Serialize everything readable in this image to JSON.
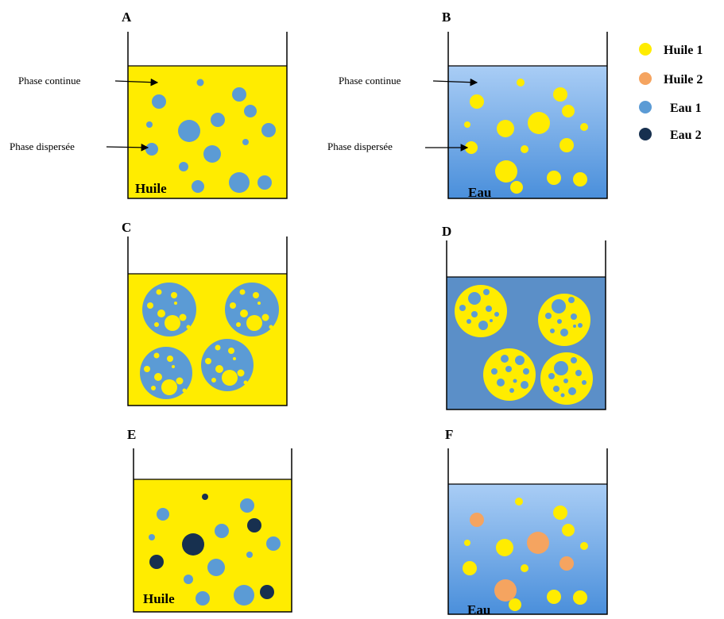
{
  "panels": {
    "a": {
      "letter": "A",
      "phase_label": "Huile",
      "continuous_label": "Phase continue",
      "dispersed_label": "Phase dispersée"
    },
    "b": {
      "letter": "B",
      "phase_label": "Eau",
      "continuous_label": "Phase continue",
      "dispersed_label": "Phase dispersée"
    },
    "c": {
      "letter": "C"
    },
    "d": {
      "letter": "D"
    },
    "e": {
      "letter": "E",
      "phase_label": "Huile"
    },
    "f": {
      "letter": "F",
      "phase_label": "Eau"
    }
  },
  "legend": [
    {
      "label": "Huile 1",
      "color": "#ffec00"
    },
    {
      "label": "Huile 2",
      "color": "#f5a460"
    },
    {
      "label": "Eau 1",
      "color": "#5b9bd5"
    },
    {
      "label": "Eau 2",
      "color": "#17304f"
    }
  ],
  "colors": {
    "oil": "#ffec00",
    "oil2": "#f5a460",
    "water": "#5b9bd5",
    "water2": "#17304f",
    "water_dark_fill": "#5b8fc8",
    "gradient_top": "#a9cdf5",
    "gradient_bottom": "#4a8fdb"
  }
}
